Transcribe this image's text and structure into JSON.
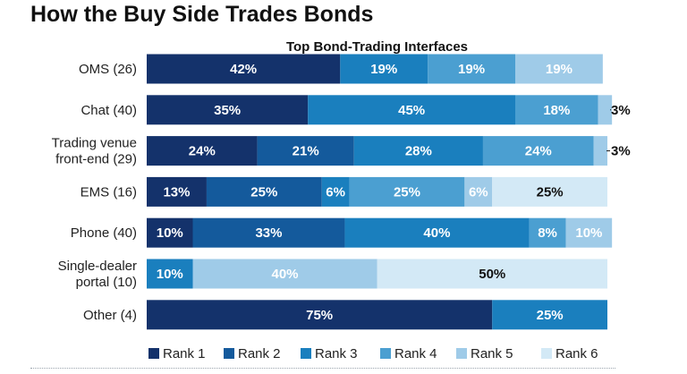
{
  "chart_data": {
    "type": "bar",
    "orientation": "horizontal",
    "stacked": true,
    "title": "How the Buy Side Trades Bonds",
    "subtitle": "Top Bond-Trading Interfaces",
    "categories": [
      [
        "OMS (26)"
      ],
      [
        "Chat (40)"
      ],
      [
        "Trading venue",
        "front-end (29)"
      ],
      [
        "EMS (16)"
      ],
      [
        "Phone (40)"
      ],
      [
        "Single-dealer",
        "portal (10)"
      ],
      [
        "Other (4)"
      ]
    ],
    "series": [
      {
        "name": "Rank 1",
        "color": "#14326b",
        "values": [
          42,
          35,
          24,
          13,
          10,
          0,
          75
        ]
      },
      {
        "name": "Rank 2",
        "color": "#145a9c",
        "values": [
          0,
          0,
          21,
          25,
          33,
          0,
          0
        ]
      },
      {
        "name": "Rank 3",
        "color": "#1a7fbe",
        "values": [
          19,
          45,
          28,
          6,
          40,
          10,
          25
        ]
      },
      {
        "name": "Rank 4",
        "color": "#4b9fd1",
        "values": [
          19,
          18,
          24,
          25,
          8,
          0,
          0
        ]
      },
      {
        "name": "Rank 5",
        "color": "#9fcbe8",
        "values": [
          19,
          3,
          3,
          6,
          10,
          40,
          0
        ]
      },
      {
        "name": "Rank 6",
        "color": "#d3e9f6",
        "values": [
          0,
          0,
          0,
          25,
          0,
          50,
          0
        ]
      }
    ],
    "xlim": [
      0,
      100
    ],
    "grid": false,
    "legend_position": "bottom"
  }
}
